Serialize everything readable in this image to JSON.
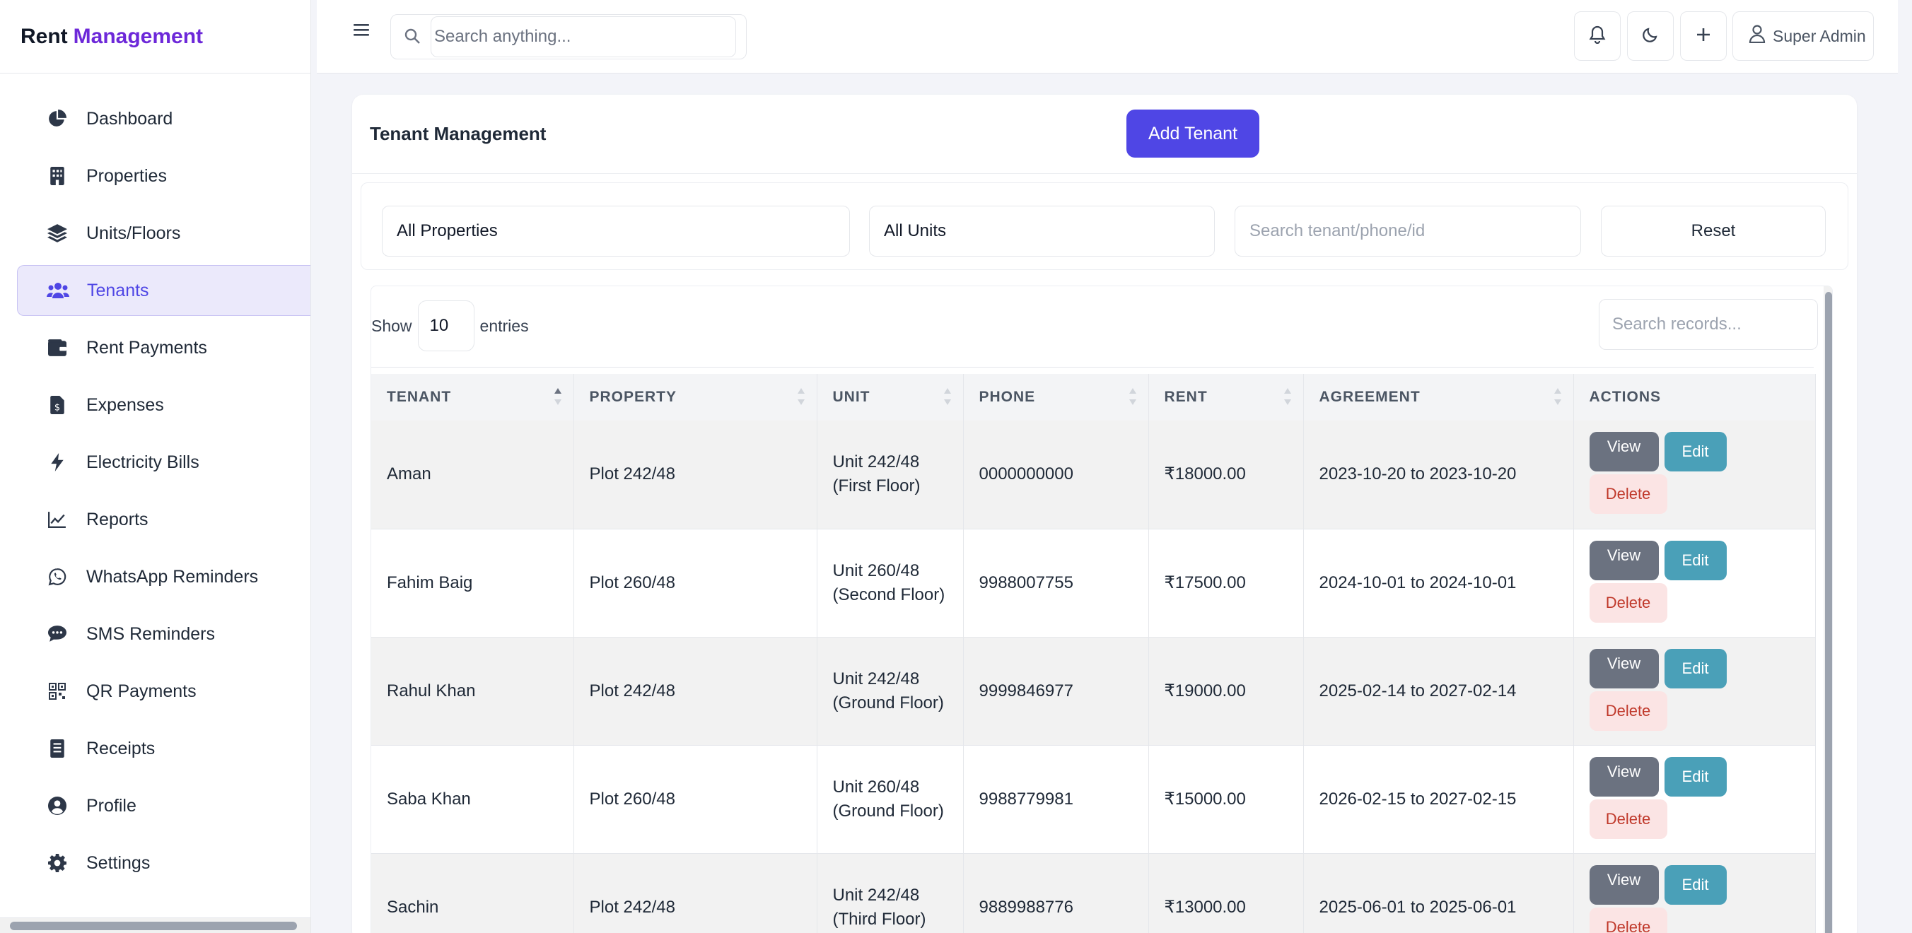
{
  "brand": {
    "part1": "Rent",
    "part2": "Management"
  },
  "sidebar": {
    "items": [
      {
        "label": "Dashboard",
        "icon": "pie-chart-icon"
      },
      {
        "label": "Properties",
        "icon": "building-icon"
      },
      {
        "label": "Units/Floors",
        "icon": "layers-icon"
      },
      {
        "label": "Tenants",
        "icon": "users-icon",
        "active": true
      },
      {
        "label": "Rent Payments",
        "icon": "wallet-icon"
      },
      {
        "label": "Expenses",
        "icon": "invoice-icon"
      },
      {
        "label": "Electricity Bills",
        "icon": "bolt-icon"
      },
      {
        "label": "Reports",
        "icon": "line-chart-icon"
      },
      {
        "label": "WhatsApp Reminders",
        "icon": "whatsapp-icon"
      },
      {
        "label": "SMS Reminders",
        "icon": "sms-icon"
      },
      {
        "label": "QR Payments",
        "icon": "qr-icon"
      },
      {
        "label": "Receipts",
        "icon": "receipt-icon"
      },
      {
        "label": "Profile",
        "icon": "user-circle-icon"
      },
      {
        "label": "Settings",
        "icon": "gear-icon"
      }
    ]
  },
  "topbar": {
    "search_placeholder": "Search anything...",
    "user_label": "Super Admin"
  },
  "page": {
    "title": "Tenant Management",
    "add_button": "Add Tenant"
  },
  "filters": {
    "property": "All Properties",
    "unit": "All Units",
    "search_placeholder": "Search tenant/phone/id",
    "reset": "Reset"
  },
  "table": {
    "show_label": "Show",
    "entries_value": "10",
    "entries_label": "entries",
    "search_placeholder": "Search records...",
    "columns": [
      "TENANT",
      "PROPERTY",
      "UNIT",
      "PHONE",
      "RENT",
      "AGREEMENT",
      "ACTIONS"
    ],
    "rows": [
      {
        "tenant": "Aman",
        "property": "Plot 242/48",
        "unit": "Unit 242/48 (First Floor)",
        "phone": "0000000000",
        "rent": "₹18000.00",
        "agreement": "2023-10-20 to 2023-10-20"
      },
      {
        "tenant": "Fahim Baig",
        "property": "Plot 260/48",
        "unit": "Unit 260/48 (Second Floor)",
        "phone": "9988007755",
        "rent": "₹17500.00",
        "agreement": "2024-10-01 to 2024-10-01"
      },
      {
        "tenant": "Rahul Khan",
        "property": "Plot 242/48",
        "unit": "Unit 242/48 (Ground Floor)",
        "phone": "9999846977",
        "rent": "₹19000.00",
        "agreement": "2025-02-14 to 2027-02-14"
      },
      {
        "tenant": "Saba Khan",
        "property": "Plot 260/48",
        "unit": "Unit 260/48 (Ground Floor)",
        "phone": "9988779981",
        "rent": "₹15000.00",
        "agreement": "2026-02-15 to 2027-02-15"
      },
      {
        "tenant": "Sachin",
        "property": "Plot 242/48",
        "unit": "Unit 242/48 (Third Floor)",
        "phone": "9889988776",
        "rent": "₹13000.00",
        "agreement": "2025-06-01 to 2025-06-01"
      }
    ],
    "actions": {
      "view": "View",
      "edit": "Edit",
      "delete": "Delete"
    }
  }
}
